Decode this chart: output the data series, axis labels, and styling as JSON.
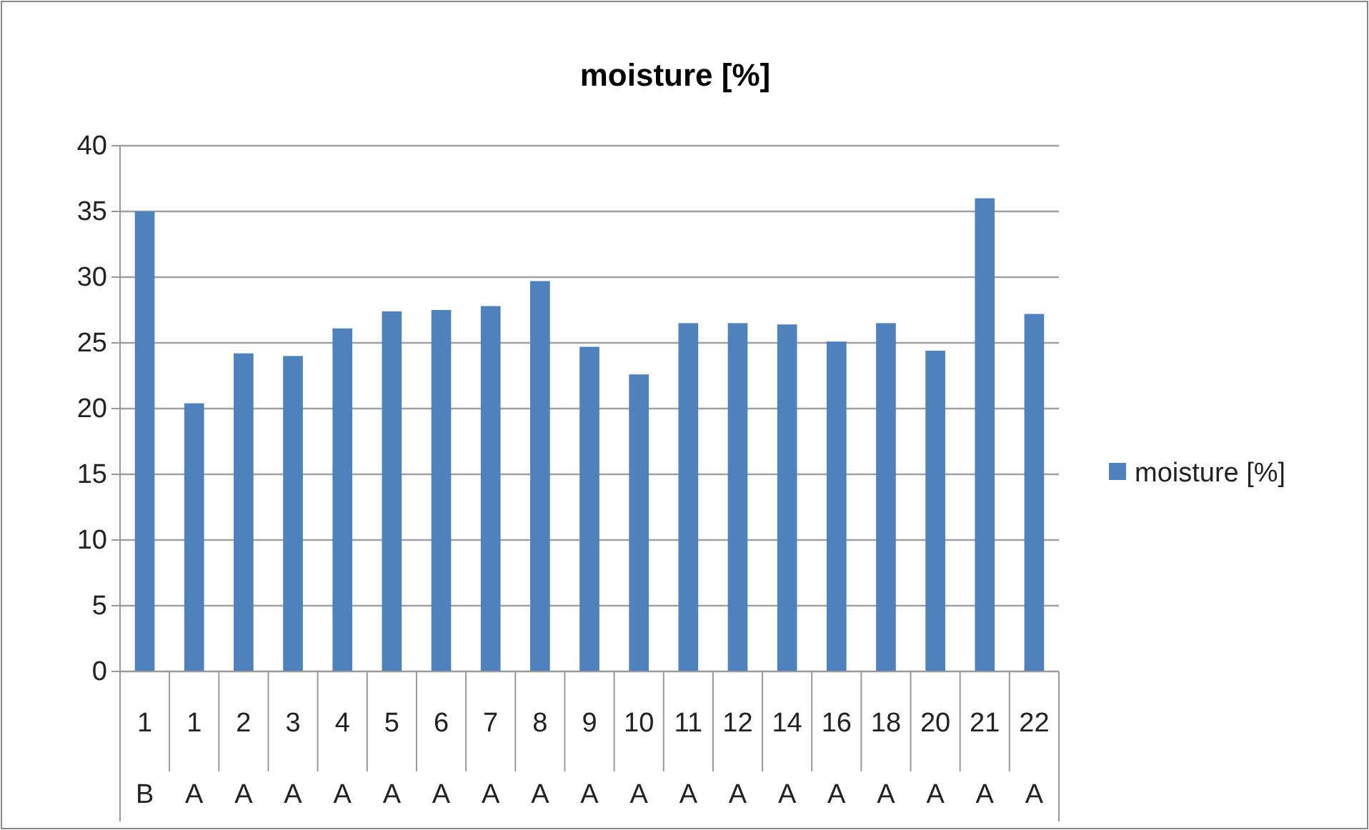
{
  "chart_data": {
    "type": "bar",
    "title": "moisture [%]",
    "categories": [
      "1\nB",
      "1\nA",
      "2\nA",
      "3\nA",
      "4\nA",
      "5\nA",
      "6\nA",
      "7\nA",
      "8\nA",
      "9\nA",
      "10\nA",
      "11\nA",
      "12\nA",
      "14\nA",
      "16\nA",
      "18\nA",
      "20\nA",
      "21\nA",
      "22\nA"
    ],
    "series": [
      {
        "name": "moisture [%]",
        "color": "#4f81bd",
        "values": [
          35.0,
          20.4,
          24.2,
          24.0,
          26.1,
          27.4,
          27.5,
          27.8,
          29.7,
          24.7,
          22.6,
          26.5,
          26.5,
          26.4,
          25.1,
          26.5,
          24.4,
          36.0,
          27.2
        ]
      }
    ],
    "ylim": [
      0,
      40
    ],
    "yticks": [
      0,
      5,
      10,
      15,
      20,
      25,
      30,
      35,
      40
    ],
    "grid": "y",
    "legend": "right"
  }
}
